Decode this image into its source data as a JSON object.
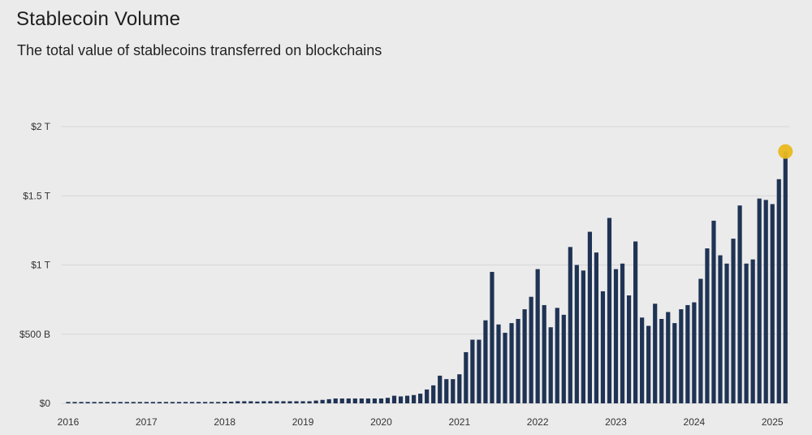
{
  "header": {
    "title": "Stablecoin Volume",
    "subtitle": "The total value of stablecoins transferred on blockchains"
  },
  "colors": {
    "bar": "#1f3354",
    "grid": "#d6d6d6",
    "highlight": "#e9b91e",
    "background": "#ebebeb"
  },
  "chart_data": {
    "type": "bar",
    "title": "Stablecoin Volume",
    "subtitle": "The total value of stablecoins transferred on blockchains",
    "xlabel": "",
    "ylabel": "",
    "unit": "USD trillions",
    "ylim": [
      0,
      2
    ],
    "y_ticks": [
      {
        "value": 0,
        "label": "$0"
      },
      {
        "value": 0.5,
        "label": "$500 B"
      },
      {
        "value": 1,
        "label": "$1 T"
      },
      {
        "value": 1.5,
        "label": "$1.5 T"
      },
      {
        "value": 2,
        "label": "$2 T"
      }
    ],
    "x_ticks": [
      {
        "index": 0,
        "label": "2016"
      },
      {
        "index": 12,
        "label": "2017"
      },
      {
        "index": 24,
        "label": "2018"
      },
      {
        "index": 36,
        "label": "2019"
      },
      {
        "index": 48,
        "label": "2020"
      },
      {
        "index": 60,
        "label": "2021"
      },
      {
        "index": 72,
        "label": "2022"
      },
      {
        "index": 84,
        "label": "2023"
      },
      {
        "index": 96,
        "label": "2024"
      },
      {
        "index": 108,
        "label": "2025"
      }
    ],
    "highlight_index": 110,
    "grid": true,
    "values": [
      0.01,
      0.01,
      0.01,
      0.01,
      0.01,
      0.01,
      0.01,
      0.01,
      0.01,
      0.01,
      0.01,
      0.01,
      0.01,
      0.01,
      0.01,
      0.01,
      0.01,
      0.01,
      0.01,
      0.01,
      0.01,
      0.01,
      0.01,
      0.01,
      0.012,
      0.012,
      0.015,
      0.015,
      0.015,
      0.013,
      0.015,
      0.015,
      0.015,
      0.015,
      0.015,
      0.015,
      0.015,
      0.015,
      0.02,
      0.025,
      0.03,
      0.035,
      0.035,
      0.035,
      0.035,
      0.035,
      0.035,
      0.035,
      0.035,
      0.04,
      0.055,
      0.05,
      0.055,
      0.06,
      0.07,
      0.1,
      0.13,
      0.2,
      0.175,
      0.175,
      0.21,
      0.37,
      0.46,
      0.46,
      0.6,
      0.95,
      0.57,
      0.51,
      0.58,
      0.61,
      0.68,
      0.77,
      0.97,
      0.71,
      0.55,
      0.69,
      0.64,
      1.13,
      1.0,
      0.96,
      1.24,
      1.09,
      0.81,
      1.34,
      0.97,
      1.01,
      0.78,
      1.17,
      0.62,
      0.56,
      0.72,
      0.61,
      0.66,
      0.58,
      0.68,
      0.71,
      0.73,
      0.9,
      1.12,
      1.32,
      1.07,
      1.01,
      1.19,
      1.43,
      1.01,
      1.04,
      1.48,
      1.47,
      1.44,
      1.62,
      1.82
    ]
  }
}
